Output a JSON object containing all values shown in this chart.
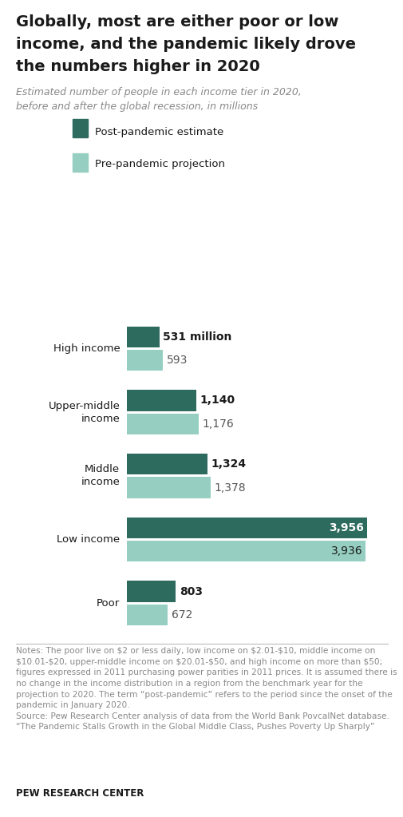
{
  "title_line1": "Globally, most are either poor or low",
  "title_line2": "income, and the pandemic likely drove",
  "title_line3": "the numbers higher in 2020",
  "subtitle": "Estimated number of people in each income tier in 2020,\nbefore and after the global recession, in millions",
  "categories": [
    "High income",
    "Upper-middle\nincome",
    "Middle\nincome",
    "Low income",
    "Poor"
  ],
  "post_pandemic": [
    531,
    1140,
    1324,
    3956,
    803
  ],
  "pre_pandemic": [
    593,
    1176,
    1378,
    3936,
    672
  ],
  "post_labels": [
    "531 million",
    "1,140",
    "1,324",
    "3,956",
    "803"
  ],
  "pre_labels": [
    "593",
    "1,176",
    "1,378",
    "3,936",
    "672"
  ],
  "post_color": "#2d6b5e",
  "pre_color": "#96cfc1",
  "legend_post": "Post-pandemic estimate",
  "legend_pre": "Pre-pandemic projection",
  "notes_text": "Notes: The poor live on $2 or less daily, low income on $2.01-$10, middle income on $10.01-$20, upper-middle income on $20.01-$50, and high income on more than $50; figures expressed in 2011 purchasing power parities in 2011 prices. It is assumed there is no change in the income distribution in a region from the benchmark year for the projection to 2020. The term “post-pandemic” refers to the period since the onset of the pandemic in January 2020.\nSource: Pew Research Center analysis of data from the World Bank PovcalNet database.\n“The Pandemic Stalls Growth in the Global Middle Class, Pushes Poverty Up Sharply”",
  "source_label": "PEW RESEARCH CENTER",
  "background_color": "#ffffff",
  "title_color": "#1a1a1a",
  "subtitle_color": "#888888",
  "notes_color": "#888888",
  "xlim": [
    0,
    4400
  ],
  "bar_height": 0.33,
  "bar_gap": 0.04
}
